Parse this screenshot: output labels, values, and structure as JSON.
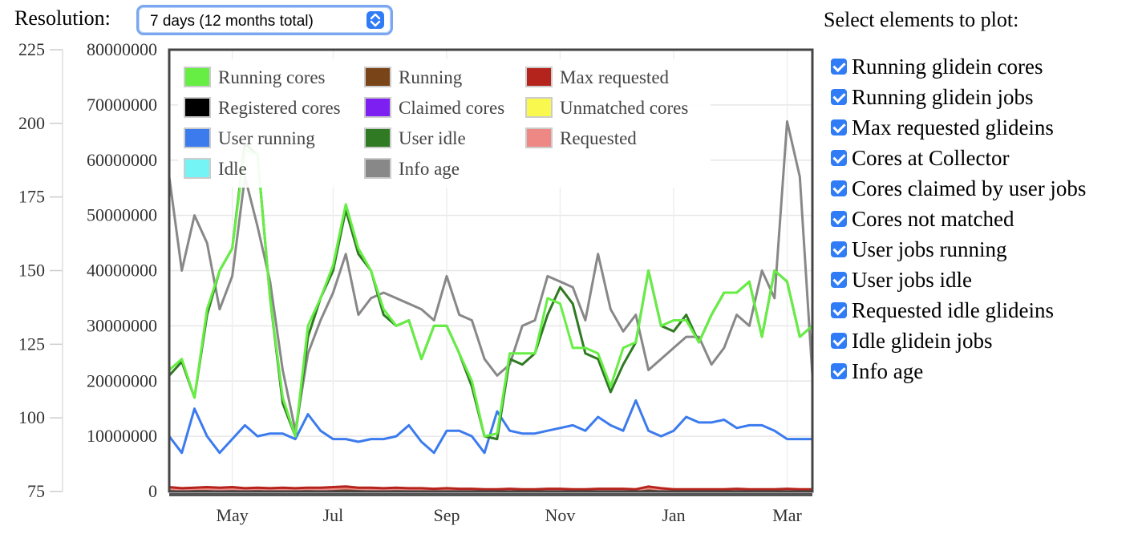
{
  "controls": {
    "resolution_label": "Resolution:",
    "resolution_value": "7 days (12 months total)",
    "select_icon": "updown-chevron-icon",
    "accent_color": "#2f7cf6"
  },
  "sidebar": {
    "title": "Select elements to plot:",
    "items": [
      {
        "label": "Running glidein cores",
        "checked": true
      },
      {
        "label": "Running glidein jobs",
        "checked": true
      },
      {
        "label": "Max requested glideins",
        "checked": true
      },
      {
        "label": "Cores at Collector",
        "checked": true
      },
      {
        "label": "Cores claimed by user jobs",
        "checked": true
      },
      {
        "label": "Cores not matched",
        "checked": true
      },
      {
        "label": "User jobs running",
        "checked": true
      },
      {
        "label": "User jobs idle",
        "checked": true
      },
      {
        "label": "Requested idle glideins",
        "checked": true
      },
      {
        "label": "Idle glidein jobs",
        "checked": true
      },
      {
        "label": "Info age",
        "checked": true
      }
    ]
  },
  "chart_data": {
    "type": "line",
    "title": "",
    "grid": true,
    "legend_placement": "top-left",
    "x_tick_labels": [
      "May",
      "Jul",
      "Sep",
      "Nov",
      "Jan",
      "Mar"
    ],
    "x_tick_index": [
      5,
      13,
      22,
      31,
      40,
      49
    ],
    "n_points": 52,
    "y_left_ticks": [
      "225",
      "200",
      "175",
      "150",
      "125",
      "100",
      "75"
    ],
    "y_left_range": [
      75,
      225
    ],
    "y_right_ticks": [
      "80000000",
      "70000000",
      "60000000",
      "50000000",
      "40000000",
      "30000000",
      "20000000",
      "10000000",
      "0"
    ],
    "y_range": [
      0,
      80000000
    ],
    "legend": [
      {
        "name": "Running cores",
        "color": "#66ee44"
      },
      {
        "name": "Running",
        "color": "#7a4419"
      },
      {
        "name": "Max requested",
        "color": "#b5241c"
      },
      {
        "name": "Registered cores",
        "color": "#000000"
      },
      {
        "name": "Claimed cores",
        "color": "#7c1ff0"
      },
      {
        "name": "Unmatched cores",
        "color": "#f8f84e"
      },
      {
        "name": "User running",
        "color": "#3b7bee"
      },
      {
        "name": "User idle",
        "color": "#2f7a22"
      },
      {
        "name": "Requested",
        "color": "#ee8884"
      },
      {
        "name": "Idle",
        "color": "#74f4f4"
      },
      {
        "name": "Info age",
        "color": "#888888"
      }
    ],
    "series": [
      {
        "name": "Running cores",
        "color": "#66ee44",
        "values": [
          22000000,
          24000000,
          17000000,
          33000000,
          40000000,
          44000000,
          62000000,
          61000000,
          35000000,
          17000000,
          10000000,
          30000000,
          35000000,
          41000000,
          52000000,
          44000000,
          40000000,
          33000000,
          30000000,
          31000000,
          24000000,
          30000000,
          30000000,
          25000000,
          20000000,
          10000000,
          10500000,
          25000000,
          25000000,
          25000000,
          35000000,
          34000000,
          26000000,
          26000000,
          25000000,
          19000000,
          26000000,
          27000000,
          40000000,
          30000000,
          31000000,
          31000000,
          27000000,
          32000000,
          36000000,
          36000000,
          38000000,
          28000000,
          40000000,
          38000000,
          28000000,
          30000000
        ]
      },
      {
        "name": "User idle",
        "color": "#2f7a22",
        "values": [
          21000000,
          23500000,
          17000000,
          32000000,
          40000000,
          44000000,
          63000000,
          61000000,
          35000000,
          16000000,
          10000000,
          28000000,
          35000000,
          40000000,
          51000000,
          43000000,
          40000000,
          32000000,
          30000000,
          31000000,
          24000000,
          30000000,
          30000000,
          25000000,
          19000000,
          10000000,
          9500000,
          24000000,
          23000000,
          25000000,
          32000000,
          37000000,
          34000000,
          25000000,
          24000000,
          18000000,
          23000000,
          27000000,
          40000000,
          30000000,
          29000000,
          32000000,
          27000000,
          32000000,
          36000000,
          36000000,
          38000000,
          28000000,
          40000000,
          38000000,
          28000000,
          30000000
        ]
      },
      {
        "name": "Info age",
        "color": "#888888",
        "values": [
          57000000,
          40000000,
          50000000,
          45000000,
          33000000,
          39000000,
          57000000,
          48000000,
          38000000,
          22000000,
          11000000,
          25000000,
          31000000,
          36000000,
          43000000,
          32000000,
          35000000,
          36000000,
          35000000,
          34000000,
          33000000,
          31000000,
          39000000,
          32000000,
          31000000,
          24000000,
          21000000,
          23000000,
          30000000,
          31000000,
          39000000,
          38000000,
          37000000,
          31000000,
          43000000,
          33000000,
          29000000,
          32000000,
          22000000,
          24000000,
          26000000,
          28000000,
          28000000,
          23000000,
          26000000,
          32000000,
          30000000,
          40000000,
          35000000,
          67000000,
          57000000,
          21000000
        ]
      },
      {
        "name": "User running",
        "color": "#3b7bee",
        "values": [
          10000000,
          7000000,
          15000000,
          10000000,
          7000000,
          9500000,
          12000000,
          10000000,
          10500000,
          10500000,
          9500000,
          14000000,
          11000000,
          9500000,
          9500000,
          9000000,
          9500000,
          9500000,
          10000000,
          12000000,
          9000000,
          7000000,
          11000000,
          11000000,
          10000000,
          7000000,
          14500000,
          11000000,
          10500000,
          10500000,
          11000000,
          11500000,
          12000000,
          11000000,
          13500000,
          12000000,
          11000000,
          16500000,
          11000000,
          10000000,
          11000000,
          13500000,
          12500000,
          12500000,
          13000000,
          11500000,
          12000000,
          12000000,
          11000000,
          9500000,
          9500000,
          9500000
        ]
      },
      {
        "name": "Max requested",
        "color": "#b5241c",
        "values": [
          800000,
          600000,
          700000,
          800000,
          700000,
          800000,
          600000,
          700000,
          600000,
          700000,
          600000,
          700000,
          700000,
          800000,
          900000,
          700000,
          700000,
          600000,
          700000,
          600000,
          600000,
          500000,
          600000,
          500000,
          500000,
          400000,
          400000,
          500000,
          400000,
          400000,
          500000,
          500000,
          400000,
          400000,
          500000,
          500000,
          500000,
          400000,
          900000,
          600000,
          400000,
          400000,
          400000,
          400000,
          400000,
          500000,
          400000,
          400000,
          400000,
          500000,
          400000,
          400000
        ]
      },
      {
        "name": "Requested",
        "color": "#ee8884",
        "values": [
          500000,
          400000,
          500000,
          500000,
          400000,
          500000,
          400000,
          500000,
          400000,
          400000,
          400000,
          500000,
          400000,
          500000,
          600000,
          500000,
          400000,
          400000,
          500000,
          400000,
          400000,
          300000,
          400000,
          300000,
          300000,
          300000,
          300000,
          300000,
          300000,
          300000,
          300000,
          300000,
          300000,
          300000,
          300000,
          300000,
          300000,
          300000,
          600000,
          400000,
          300000,
          300000,
          300000,
          300000,
          300000,
          300000,
          300000,
          300000,
          300000,
          300000,
          300000,
          300000
        ]
      },
      {
        "name": "Running",
        "color": "#7a4419",
        "values": [
          200000,
          200000,
          200000,
          200000,
          200000,
          200000,
          200000,
          200000,
          200000,
          200000,
          200000,
          200000,
          200000,
          200000,
          200000,
          200000,
          200000,
          200000,
          200000,
          200000,
          200000,
          200000,
          200000,
          200000,
          200000,
          200000,
          200000,
          200000,
          200000,
          200000,
          200000,
          200000,
          200000,
          200000,
          200000,
          200000,
          200000,
          200000,
          200000,
          200000,
          200000,
          200000,
          200000,
          200000,
          200000,
          200000,
          200000,
          200000,
          200000,
          200000,
          200000,
          200000
        ]
      },
      {
        "name": "Idle",
        "color": "#74f4f4",
        "values": [
          0,
          0,
          0,
          0,
          0,
          0,
          0,
          0,
          0,
          0,
          0,
          0,
          0,
          0,
          0,
          0,
          0,
          0,
          0,
          0,
          0,
          0,
          0,
          0,
          0,
          0,
          0,
          0,
          0,
          0,
          0,
          0,
          0,
          0,
          0,
          0,
          0,
          0,
          0,
          0,
          0,
          0,
          0,
          0,
          0,
          0,
          0,
          0,
          0,
          0,
          0,
          0
        ]
      }
    ]
  }
}
